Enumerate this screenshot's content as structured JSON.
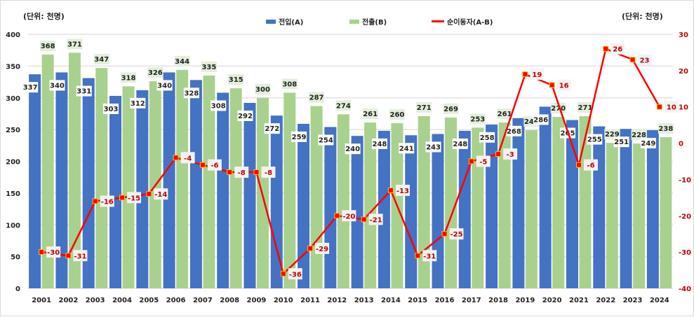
{
  "chart_data": {
    "type": "bar+line",
    "unit_left": "(단위: 천명)",
    "unit_right": "(단위: 천명)",
    "categories": [
      "2001",
      "2002",
      "2003",
      "2004",
      "2005",
      "2006",
      "2007",
      "2008",
      "2009",
      "2010",
      "2011",
      "2012",
      "2013",
      "2014",
      "2015",
      "2016",
      "2017",
      "2018",
      "2019",
      "2020",
      "2021",
      "2022",
      "2023",
      "2024"
    ],
    "series": [
      {
        "name": "전입(A)",
        "type": "bar",
        "axis": "left",
        "color": "#4472c4",
        "values": [
          337,
          340,
          331,
          303,
          312,
          340,
          328,
          308,
          292,
          272,
          259,
          254,
          240,
          248,
          241,
          243,
          248,
          258,
          268,
          286,
          265,
          255,
          251,
          249
        ]
      },
      {
        "name": "전출(B)",
        "type": "bar",
        "axis": "left",
        "color": "#a9d18e",
        "values": [
          368,
          371,
          347,
          318,
          326,
          344,
          335,
          315,
          300,
          308,
          287,
          274,
          261,
          260,
          271,
          269,
          253,
          261,
          249,
          270,
          271,
          229,
          228,
          238
        ]
      },
      {
        "name": "순이동자(A-B)",
        "type": "line",
        "axis": "right",
        "color": "#ff0000",
        "values": [
          -30,
          -31,
          -16,
          -15,
          -14,
          -4,
          -6,
          -8,
          -8,
          -36,
          -29,
          -20,
          -21,
          -13,
          -31,
          -25,
          -5,
          -3,
          19,
          16,
          -6,
          26,
          23,
          10
        ]
      }
    ],
    "left_axis": {
      "ylim": [
        0,
        400
      ],
      "ticks": [
        0,
        50,
        100,
        150,
        200,
        250,
        300,
        350,
        400
      ]
    },
    "right_axis": {
      "ylim": [
        -40,
        30
      ],
      "ticks": [
        -40,
        -30,
        -20,
        -10,
        0,
        10,
        20,
        30
      ],
      "color": "#c00000"
    },
    "grid": true,
    "legend_position": "top-center"
  }
}
